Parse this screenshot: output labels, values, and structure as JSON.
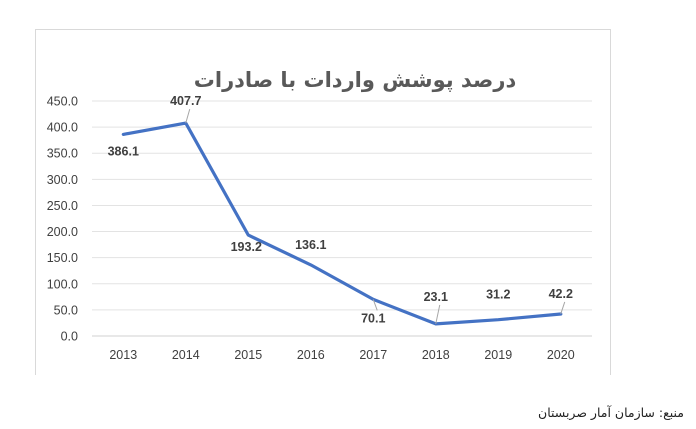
{
  "chart_data": {
    "type": "line",
    "title": "درصد پوشش واردات با صادرات",
    "categories": [
      "2013",
      "2014",
      "2015",
      "2016",
      "2017",
      "2018",
      "2019",
      "2020"
    ],
    "series": [
      {
        "values": [
          386.1,
          407.7,
          193.2,
          136.1,
          70.1,
          23.1,
          31.2,
          42.2
        ]
      }
    ],
    "data_labels": [
      "386.1",
      "407.7",
      "193.2",
      "136.1",
      "70.1",
      "23.1",
      "31.2",
      "42.2"
    ],
    "y_ticks": [
      "0.0",
      "50.0",
      "100.0",
      "150.0",
      "200.0",
      "250.0",
      "300.0",
      "350.0",
      "400.0",
      "450.0"
    ],
    "ylim": [
      0,
      450
    ],
    "grid": true,
    "line_color": "#4472c4"
  },
  "source_note": "منبع: سازمان آمار صربستان"
}
